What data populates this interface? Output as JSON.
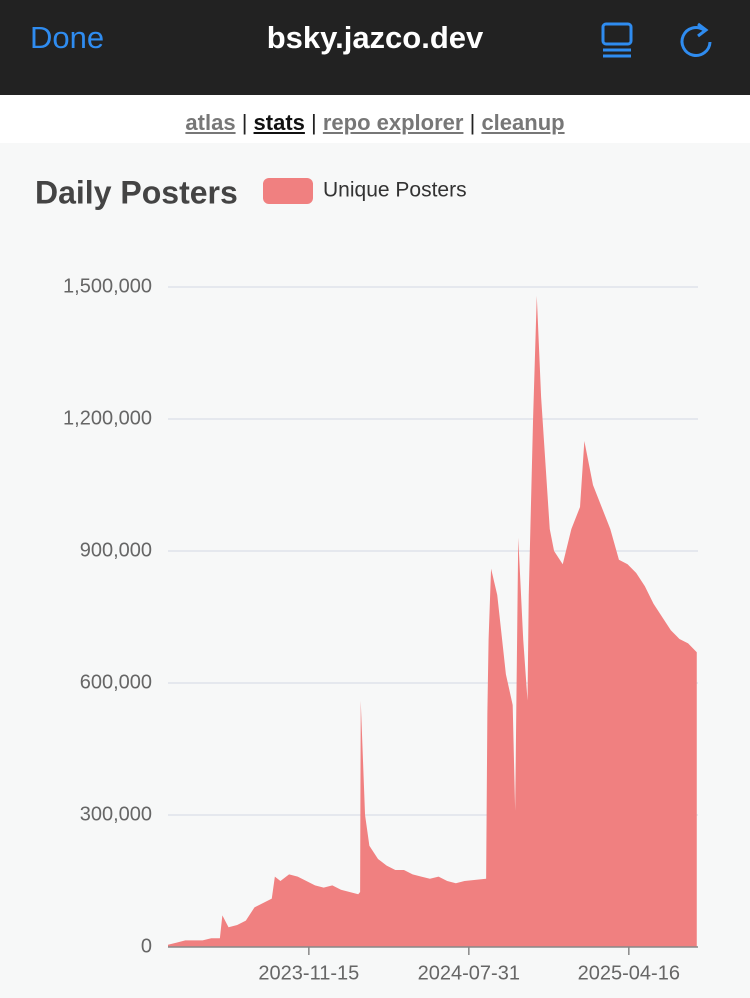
{
  "header": {
    "done": "Done",
    "site": "bsky.jazco.dev"
  },
  "nav": {
    "links": [
      "atlas",
      "stats",
      "repo explorer",
      "cleanup"
    ],
    "separator": "|"
  },
  "chart_data": {
    "type": "area",
    "title": "Daily Posters",
    "x": [
      "2023-04-01",
      "2023-04-15",
      "2023-04-29",
      "2023-05-13",
      "2023-05-27",
      "2023-06-10",
      "2023-06-24",
      "2023-06-28",
      "2023-07-08",
      "2023-07-22",
      "2023-08-05",
      "2023-08-19",
      "2023-09-02",
      "2023-09-16",
      "2023-09-21",
      "2023-09-30",
      "2023-10-14",
      "2023-10-28",
      "2023-11-11",
      "2023-11-25",
      "2023-12-09",
      "2023-12-23",
      "2024-01-06",
      "2024-01-20",
      "2024-02-03",
      "2024-02-06",
      "2024-02-07",
      "2024-02-14",
      "2024-02-21",
      "2024-03-06",
      "2024-03-20",
      "2024-04-03",
      "2024-04-17",
      "2024-05-01",
      "2024-05-15",
      "2024-05-29",
      "2024-06-12",
      "2024-06-26",
      "2024-07-10",
      "2024-07-24",
      "2024-08-28",
      "2024-08-30",
      "2024-09-01",
      "2024-09-05",
      "2024-09-15",
      "2024-09-29",
      "2024-10-10",
      "2024-10-14",
      "2024-10-19",
      "2024-10-27",
      "2024-11-03",
      "2024-11-05",
      "2024-11-12",
      "2024-11-18",
      "2024-11-25",
      "2024-12-02",
      "2024-12-09",
      "2024-12-16",
      "2024-12-30",
      "2025-01-13",
      "2025-01-27",
      "2025-02-03",
      "2025-02-17",
      "2025-03-03",
      "2025-03-17",
      "2025-03-31",
      "2025-04-14",
      "2025-04-28",
      "2025-05-12",
      "2025-05-26",
      "2025-06-09",
      "2025-06-23",
      "2025-07-07",
      "2025-07-21",
      "2025-08-04"
    ],
    "series": [
      {
        "name": "Unique Posters",
        "color": "#f08080",
        "values": [
          5000,
          10000,
          15000,
          15000,
          15000,
          20000,
          20000,
          72000,
          45000,
          50000,
          60000,
          90000,
          100000,
          110000,
          160000,
          150000,
          165000,
          160000,
          150000,
          140000,
          135000,
          140000,
          130000,
          125000,
          120000,
          125000,
          560000,
          300000,
          230000,
          200000,
          185000,
          175000,
          175000,
          165000,
          160000,
          155000,
          160000,
          150000,
          145000,
          150000,
          155000,
          530000,
          700000,
          860000,
          800000,
          620000,
          550000,
          310000,
          930000,
          700000,
          560000,
          800000,
          1200000,
          1480000,
          1250000,
          1100000,
          950000,
          900000,
          870000,
          950000,
          1000000,
          1150000,
          1050000,
          1000000,
          950000,
          880000,
          870000,
          850000,
          820000,
          780000,
          750000,
          720000,
          700000,
          690000,
          670000
        ]
      }
    ],
    "xlim": [
      "2023-04-01",
      "2025-08-06"
    ],
    "xticks": [
      "2023-11-15",
      "2024-07-31",
      "2025-04-16"
    ],
    "ylim": [
      0,
      1500000
    ],
    "yticks": [
      0,
      {
        "value": 300000,
        "label": "300,000"
      },
      {
        "value": 600000,
        "label": "600,000"
      },
      {
        "value": 900000,
        "label": "900,000"
      },
      {
        "value": 1200000,
        "label": "1,200,000"
      },
      {
        "value": 1500000,
        "label": "1,500,000"
      }
    ],
    "grid": true
  }
}
